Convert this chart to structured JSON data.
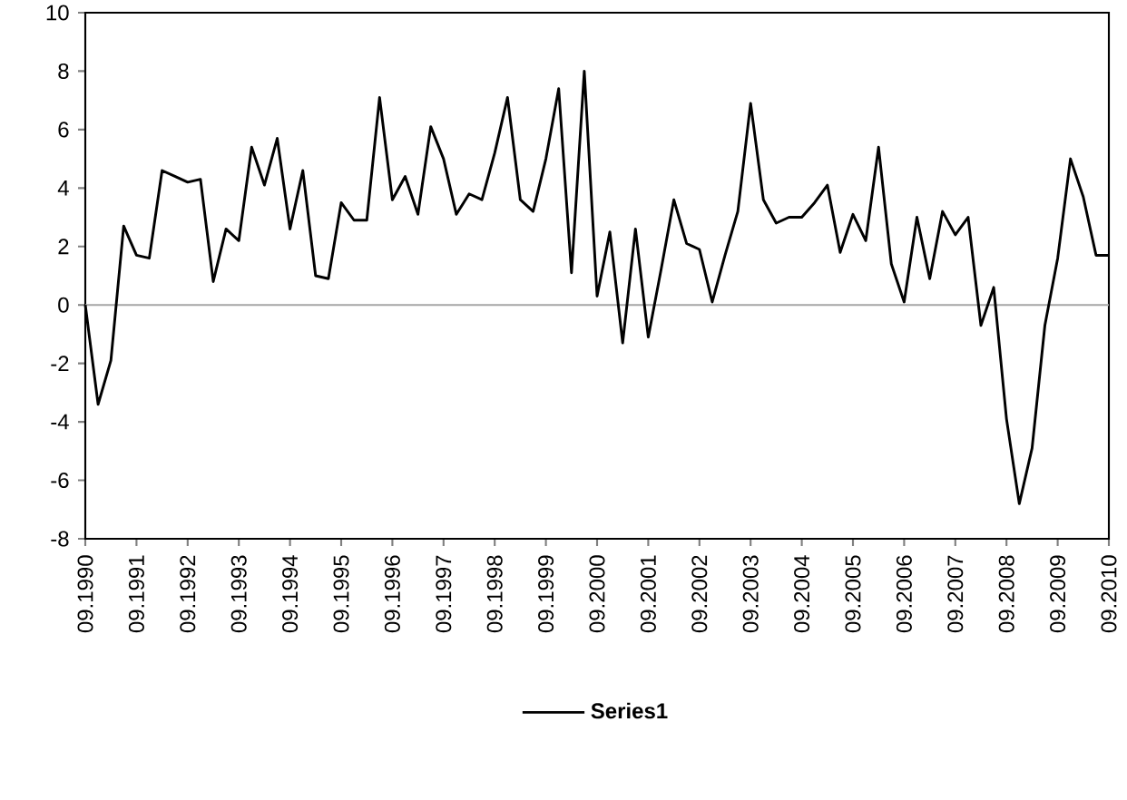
{
  "chart_data": {
    "type": "line",
    "categories": [
      "09.1990",
      null,
      null,
      null,
      "09.1991",
      null,
      null,
      null,
      "09.1992",
      null,
      null,
      null,
      "09.1993",
      null,
      null,
      null,
      "09.1994",
      null,
      null,
      null,
      "09.1995",
      null,
      null,
      null,
      "09.1996",
      null,
      null,
      null,
      "09.1997",
      null,
      null,
      null,
      "09.1998",
      null,
      null,
      null,
      "09.1999",
      null,
      null,
      null,
      "09.2000",
      null,
      null,
      null,
      "09.2001",
      null,
      null,
      null,
      "09.2002",
      null,
      null,
      null,
      "09.2003",
      null,
      null,
      null,
      "09.2004",
      null,
      null,
      null,
      "09.2005",
      null,
      null,
      null,
      "09.2006",
      null,
      null,
      null,
      "09.2007",
      null,
      null,
      null,
      "09.2008",
      null,
      null,
      null,
      "09.2009",
      null,
      null,
      null,
      "09.2010"
    ],
    "series": [
      {
        "name": "Series1",
        "color": "#000000",
        "values": [
          0,
          -3.4,
          -1.9,
          2.7,
          1.7,
          1.6,
          4.6,
          4.4,
          4.2,
          4.3,
          0.8,
          2.6,
          2.2,
          5.4,
          4.1,
          5.7,
          2.6,
          4.6,
          1.0,
          0.9,
          3.5,
          2.9,
          2.9,
          7.1,
          3.6,
          4.4,
          3.1,
          6.1,
          5.0,
          3.1,
          3.8,
          3.6,
          5.2,
          7.1,
          3.6,
          3.2,
          5.0,
          7.4,
          1.1,
          8.0,
          0.3,
          2.5,
          -1.3,
          2.6,
          -1.1,
          1.2,
          3.6,
          2.1,
          1.9,
          0.1,
          1.7,
          3.2,
          6.9,
          3.6,
          2.8,
          3.0,
          3.0,
          3.5,
          4.1,
          1.8,
          3.1,
          2.2,
          5.4,
          1.4,
          0.1,
          3.0,
          0.9,
          3.2,
          2.4,
          3.0,
          -0.7,
          0.6,
          -3.9,
          -6.8,
          -4.9,
          -0.7,
          1.6,
          5.0,
          3.7,
          1.7,
          1.7
        ]
      }
    ],
    "ylim": [
      -8,
      10
    ],
    "yticks": [
      -8,
      -6,
      -4,
      -2,
      0,
      2,
      4,
      6,
      8,
      10
    ],
    "legend": "bottom"
  }
}
